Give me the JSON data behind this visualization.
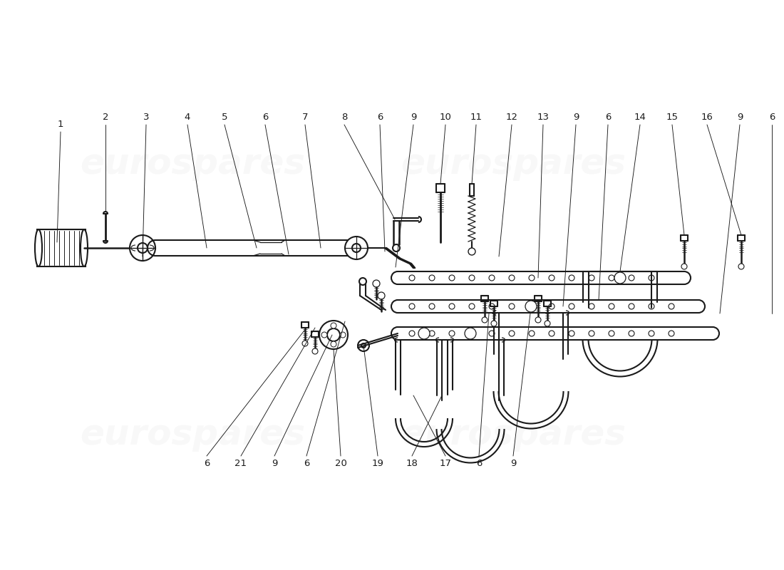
{
  "bg": "#ffffff",
  "lc": "#1a1a1a",
  "wc": "#cccccc",
  "lw": 1.5,
  "top_labels": [
    [
      "1",
      85,
      175
    ],
    [
      "2",
      148,
      165
    ],
    [
      "3",
      205,
      165
    ],
    [
      "4",
      263,
      165
    ],
    [
      "5",
      315,
      165
    ],
    [
      "6",
      372,
      165
    ],
    [
      "7",
      428,
      165
    ],
    [
      "8",
      483,
      165
    ],
    [
      "6",
      533,
      165
    ],
    [
      "9",
      580,
      165
    ],
    [
      "10",
      625,
      165
    ],
    [
      "11",
      668,
      165
    ],
    [
      "12",
      718,
      165
    ],
    [
      "13",
      762,
      165
    ],
    [
      "9",
      808,
      165
    ],
    [
      "6",
      853,
      165
    ],
    [
      "14",
      898,
      165
    ],
    [
      "15",
      943,
      165
    ],
    [
      "16",
      992,
      165
    ],
    [
      "9",
      1038,
      165
    ],
    [
      "6",
      1083,
      165
    ]
  ],
  "bot_labels": [
    [
      "6",
      290,
      650
    ],
    [
      "21",
      338,
      650
    ],
    [
      "9",
      385,
      650
    ],
    [
      "6",
      430,
      650
    ],
    [
      "20",
      478,
      650
    ],
    [
      "19",
      530,
      650
    ],
    [
      "18",
      578,
      650
    ],
    [
      "17",
      625,
      650
    ],
    [
      "6",
      672,
      650
    ],
    [
      "9",
      720,
      650
    ]
  ]
}
